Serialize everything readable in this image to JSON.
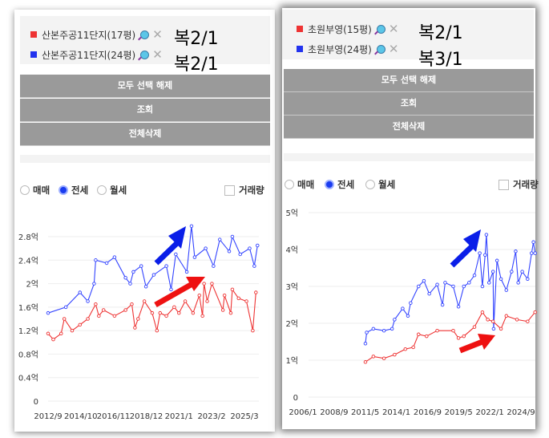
{
  "left": {
    "legend": [
      {
        "label": "산본주공11단지(17평)",
        "color": "#ee3333",
        "note": "복2/1"
      },
      {
        "label": "산본주공11단지(24평)",
        "color": "#2233ee",
        "note": "복2/1"
      }
    ],
    "buttons": {
      "deselect": "모두 선택 해제",
      "query": "조회",
      "delete_all": "전체삭제"
    },
    "radios": [
      {
        "label": "매매",
        "checked": false
      },
      {
        "label": "전세",
        "checked": true
      },
      {
        "label": "월세",
        "checked": false
      }
    ],
    "volume_label": "거래량",
    "volume_checked": false
  },
  "right": {
    "legend": [
      {
        "label": "초원부영(15평)",
        "color": "#ee3333",
        "note": "복2/1"
      },
      {
        "label": "초원부영(24평)",
        "color": "#2233ee",
        "note": "복3/1"
      }
    ],
    "buttons": {
      "deselect": "모두 선택 해제",
      "query": "조회",
      "delete_all": "전체삭제"
    },
    "radios": [
      {
        "label": "매매",
        "checked": false
      },
      {
        "label": "전세",
        "checked": true
      },
      {
        "label": "월세",
        "checked": false
      }
    ],
    "volume_label": "거래량",
    "volume_checked": false
  },
  "chart_data": [
    {
      "type": "line",
      "title": "",
      "ylabel": "",
      "ylim": [
        0,
        2.8
      ],
      "yticks": [
        "0",
        "0.4억",
        "0.8억",
        "1.2억",
        "1.6억",
        "2억",
        "2.4억",
        "2.8억"
      ],
      "xticks": [
        {
          "label": "2012/9",
          "x": 2012.67
        },
        {
          "label": "2014/10",
          "x": 2014.75
        },
        {
          "label": "2016/11",
          "x": 2016.83
        },
        {
          "label": "2018/12",
          "x": 2018.92
        },
        {
          "label": "2021/1",
          "x": 2021.0
        },
        {
          "label": "2023/2",
          "x": 2023.08
        },
        {
          "label": "2025/3",
          "x": 2025.17
        }
      ],
      "grid": true,
      "series": [
        {
          "name": "산본주공11단지(24평)",
          "color": "#3344ff",
          "points": [
            [
              2012.67,
              1.5
            ],
            [
              2013.8,
              1.6
            ],
            [
              2014.7,
              1.85
            ],
            [
              2015.2,
              1.7
            ],
            [
              2015.6,
              2.0
            ],
            [
              2015.7,
              2.4
            ],
            [
              2016.4,
              2.35
            ],
            [
              2016.9,
              2.45
            ],
            [
              2017.6,
              2.1
            ],
            [
              2017.9,
              2.0
            ],
            [
              2018.1,
              2.2
            ],
            [
              2018.6,
              2.3
            ],
            [
              2018.9,
              1.95
            ],
            [
              2019.4,
              2.15
            ],
            [
              2020.2,
              2.3
            ],
            [
              2020.5,
              1.9
            ],
            [
              2020.8,
              2.5
            ],
            [
              2021.5,
              2.2
            ],
            [
              2021.8,
              2.98
            ],
            [
              2022.0,
              2.45
            ],
            [
              2022.7,
              2.6
            ],
            [
              2023.2,
              2.3
            ],
            [
              2023.6,
              2.75
            ],
            [
              2024.2,
              2.55
            ],
            [
              2024.4,
              2.8
            ],
            [
              2024.9,
              2.5
            ],
            [
              2025.5,
              2.6
            ],
            [
              2025.8,
              2.3
            ],
            [
              2026.0,
              2.65
            ]
          ]
        },
        {
          "name": "산본주공11단지(17평)",
          "color": "#ee3333",
          "points": [
            [
              2012.67,
              1.15
            ],
            [
              2013.0,
              1.05
            ],
            [
              2013.5,
              1.15
            ],
            [
              2013.7,
              1.4
            ],
            [
              2014.2,
              1.2
            ],
            [
              2014.7,
              1.3
            ],
            [
              2015.2,
              1.4
            ],
            [
              2015.7,
              1.65
            ],
            [
              2015.9,
              1.45
            ],
            [
              2016.2,
              1.55
            ],
            [
              2016.9,
              1.45
            ],
            [
              2017.6,
              1.55
            ],
            [
              2018.0,
              1.65
            ],
            [
              2018.2,
              1.25
            ],
            [
              2018.4,
              1.4
            ],
            [
              2018.8,
              1.7
            ],
            [
              2019.3,
              1.5
            ],
            [
              2019.6,
              1.2
            ],
            [
              2019.8,
              1.5
            ],
            [
              2020.2,
              1.45
            ],
            [
              2020.7,
              1.6
            ],
            [
              2021.0,
              1.5
            ],
            [
              2021.4,
              1.7
            ],
            [
              2021.9,
              1.5
            ],
            [
              2022.3,
              1.8
            ],
            [
              2022.5,
              1.45
            ],
            [
              2022.6,
              2.0
            ],
            [
              2022.8,
              1.7
            ],
            [
              2023.1,
              2.0
            ],
            [
              2023.8,
              1.55
            ],
            [
              2023.9,
              1.8
            ],
            [
              2024.3,
              1.5
            ],
            [
              2024.4,
              1.9
            ],
            [
              2024.8,
              1.75
            ],
            [
              2025.3,
              1.7
            ],
            [
              2025.7,
              1.2
            ],
            [
              2025.9,
              1.85
            ]
          ]
        }
      ]
    },
    {
      "type": "line",
      "title": "",
      "ylabel": "",
      "ylim": [
        0,
        5
      ],
      "yticks": [
        "0",
        "1억",
        "2억",
        "3억",
        "4억",
        "5억"
      ],
      "xticks": [
        {
          "label": "2006/1",
          "x": 2006.0
        },
        {
          "label": "2008/9",
          "x": 2008.67
        },
        {
          "label": "2011/5",
          "x": 2011.33
        },
        {
          "label": "2014/1",
          "x": 2014.0
        },
        {
          "label": "2016/9",
          "x": 2016.67
        },
        {
          "label": "2019/5",
          "x": 2019.33
        },
        {
          "label": "2022/1",
          "x": 2022.0
        },
        {
          "label": "2024/9",
          "x": 2024.67
        }
      ],
      "grid": true,
      "series": [
        {
          "name": "초원부영(24평)",
          "color": "#3344ff",
          "points": [
            [
              2011.35,
              1.45
            ],
            [
              2011.46,
              1.75
            ],
            [
              2012.03,
              1.85
            ],
            [
              2012.94,
              1.8
            ],
            [
              2013.63,
              1.85
            ],
            [
              2013.85,
              2.1
            ],
            [
              2014.54,
              2.4
            ],
            [
              2014.99,
              2.2
            ],
            [
              2015.22,
              2.55
            ],
            [
              2015.9,
              3.0
            ],
            [
              2016.36,
              3.15
            ],
            [
              2016.82,
              2.8
            ],
            [
              2017.5,
              3.05
            ],
            [
              2017.95,
              2.5
            ],
            [
              2018.18,
              3.1
            ],
            [
              2018.87,
              3.0
            ],
            [
              2019.32,
              2.45
            ],
            [
              2019.78,
              3.0
            ],
            [
              2020.23,
              3.1
            ],
            [
              2020.69,
              3.3
            ],
            [
              2021.14,
              3.9
            ],
            [
              2021.37,
              3.0
            ],
            [
              2021.6,
              3.85
            ],
            [
              2021.71,
              4.4
            ],
            [
              2021.94,
              3.1
            ],
            [
              2022.28,
              3.4
            ],
            [
              2022.33,
              1.85
            ],
            [
              2022.62,
              3.7
            ],
            [
              2022.96,
              3.2
            ],
            [
              2023.42,
              2.9
            ],
            [
              2023.87,
              3.4
            ],
            [
              2024.22,
              3.95
            ],
            [
              2024.44,
              3.1
            ],
            [
              2024.78,
              3.4
            ],
            [
              2025.24,
              3.2
            ],
            [
              2025.58,
              3.9
            ],
            [
              2025.74,
              4.2
            ],
            [
              2025.88,
              3.9
            ]
          ]
        },
        {
          "name": "초원부영(15평)",
          "color": "#ee3333",
          "points": [
            [
              2011.35,
              0.95
            ],
            [
              2012.03,
              1.1
            ],
            [
              2012.94,
              1.05
            ],
            [
              2013.85,
              1.15
            ],
            [
              2014.77,
              1.3
            ],
            [
              2015.45,
              1.35
            ],
            [
              2015.9,
              1.7
            ],
            [
              2016.59,
              1.65
            ],
            [
              2017.5,
              1.8
            ],
            [
              2018.87,
              1.8
            ],
            [
              2019.32,
              1.6
            ],
            [
              2019.78,
              1.65
            ],
            [
              2020.69,
              1.9
            ],
            [
              2021.37,
              2.3
            ],
            [
              2021.83,
              2.1
            ],
            [
              2022.28,
              2.05
            ],
            [
              2022.96,
              1.85
            ],
            [
              2023.42,
              2.2
            ],
            [
              2024.33,
              2.1
            ],
            [
              2025.24,
              2.05
            ],
            [
              2025.88,
              2.3
            ]
          ]
        }
      ]
    }
  ]
}
